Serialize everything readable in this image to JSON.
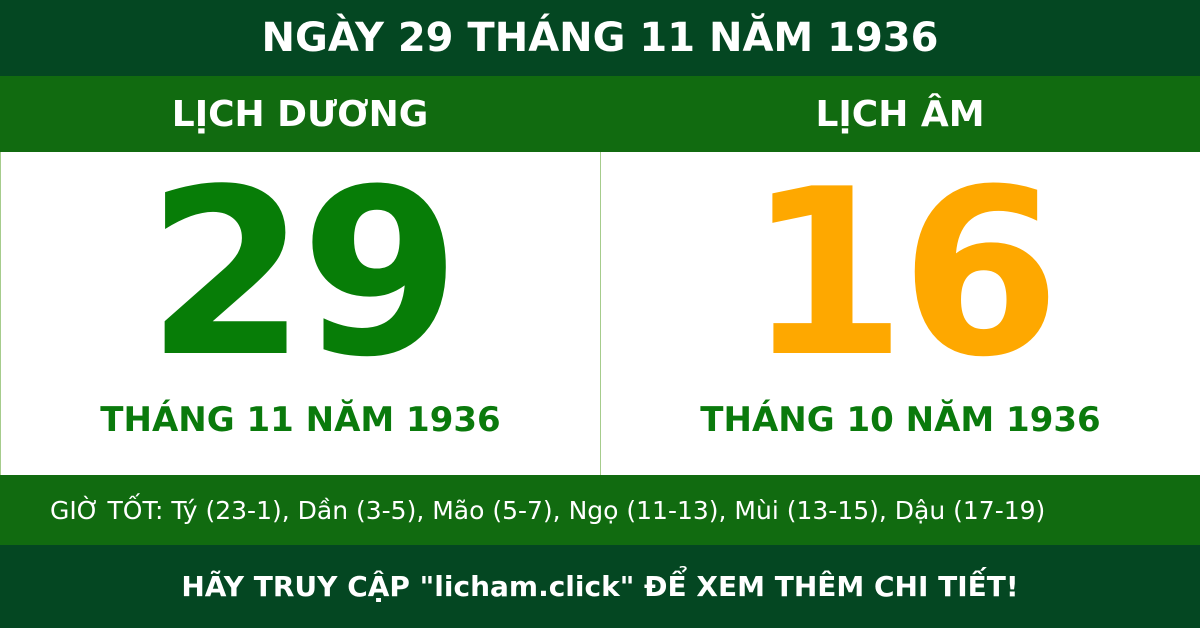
{
  "title": "NGÀY 29 THÁNG 11 NĂM 1936",
  "solar": {
    "heading": "LỊCH DƯƠNG",
    "day": "29",
    "month_year": "THÁNG 11 NĂM 1936",
    "color": "#077d07"
  },
  "lunar": {
    "heading": "LỊCH ÂM",
    "day": "16",
    "month_year": "THÁNG 10 NĂM 1936",
    "color": "#fea800"
  },
  "good_hours": "GIỜ TỐT: Tý (23-1), Dần (3-5), Mão (5-7), Ngọ (11-13), Mùi (13-15), Dậu (17-19)",
  "footer": "HÃY TRUY CẬP \"licham.click\" ĐỂ XEM THÊM CHI TIẾT!"
}
